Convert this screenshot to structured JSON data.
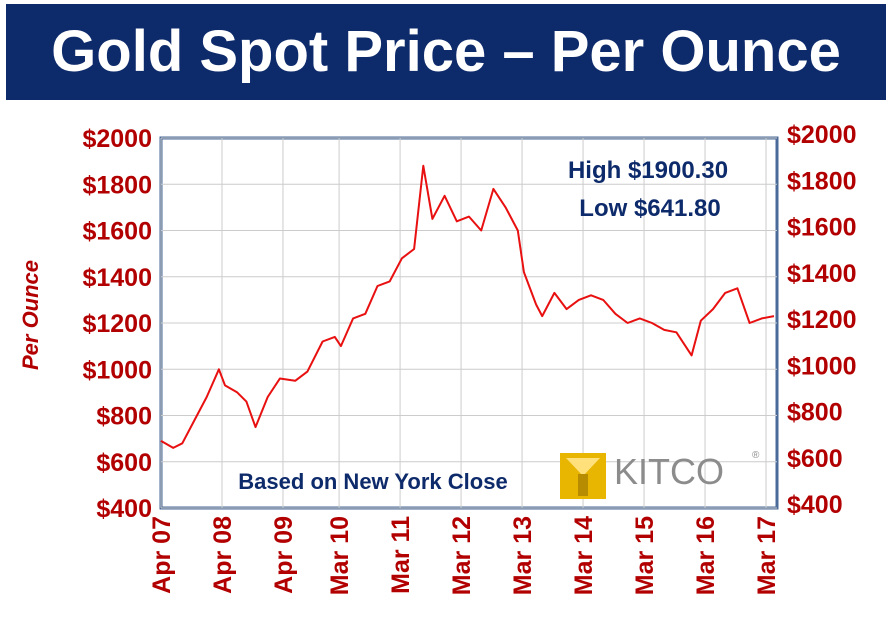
{
  "colors": {
    "title_bg": "#0d2a6b",
    "tick_red": "#b20000",
    "line_red": "#e81010",
    "text_navy": "#0d2a6b",
    "axis_blue": "#4a6a99",
    "logo_gold": "#e8b500",
    "logo_gray": "#8c8c8c"
  },
  "chart_data": {
    "type": "line",
    "title": "Gold Spot Price – Per Ounce",
    "ylabel": "Per Ounce",
    "ylim": [
      400,
      2000
    ],
    "y_ticks": [
      "$2000",
      "$1800",
      "$1600",
      "$1400",
      "$1200",
      "$1000",
      "$800",
      "$600",
      "$400"
    ],
    "y_tick_values": [
      2000,
      1800,
      1600,
      1400,
      1200,
      1000,
      800,
      600,
      400
    ],
    "x_ticks": [
      "Apr 07",
      "Apr 08",
      "Apr 09",
      "Mar 10",
      "Mar 11",
      "Mar 12",
      "Mar 13",
      "Mar 14",
      "Mar 15",
      "Mar 16",
      "Mar 17"
    ],
    "x_tick_values": [
      2007.25,
      2008.25,
      2009.25,
      2010.17,
      2011.17,
      2012.17,
      2013.17,
      2014.17,
      2015.17,
      2016.17,
      2017.17
    ],
    "xlim": [
      2007.25,
      2017.35
    ],
    "grid": true,
    "annotations": {
      "high": "High $1900.30",
      "low": "Low $641.80",
      "note": "Based on New York Close",
      "logo": "KITCO",
      "logo_mark": "®"
    },
    "series": [
      {
        "x": [
          2007.25,
          2007.45,
          2007.6,
          2007.8,
          2008.0,
          2008.2,
          2008.3,
          2008.5,
          2008.65,
          2008.8,
          2009.0,
          2009.2,
          2009.45,
          2009.65,
          2009.9,
          2010.1,
          2010.2,
          2010.4,
          2010.6,
          2010.8,
          2011.0,
          2011.2,
          2011.4,
          2011.55,
          2011.7,
          2011.9,
          2012.1,
          2012.3,
          2012.5,
          2012.7,
          2012.9,
          2013.1,
          2013.2,
          2013.4,
          2013.5,
          2013.7,
          2013.9,
          2014.1,
          2014.3,
          2014.5,
          2014.7,
          2014.9,
          2015.1,
          2015.3,
          2015.5,
          2015.7,
          2015.95,
          2016.1,
          2016.3,
          2016.5,
          2016.7,
          2016.9,
          2017.1,
          2017.3
        ],
        "y": [
          690,
          660,
          680,
          780,
          880,
          1000,
          930,
          900,
          860,
          750,
          880,
          960,
          950,
          990,
          1120,
          1140,
          1100,
          1220,
          1240,
          1360,
          1380,
          1480,
          1520,
          1880,
          1650,
          1750,
          1640,
          1660,
          1600,
          1780,
          1700,
          1600,
          1420,
          1280,
          1230,
          1330,
          1260,
          1300,
          1320,
          1300,
          1240,
          1200,
          1220,
          1200,
          1170,
          1160,
          1060,
          1210,
          1260,
          1330,
          1350,
          1200,
          1220,
          1230
        ]
      }
    ]
  }
}
